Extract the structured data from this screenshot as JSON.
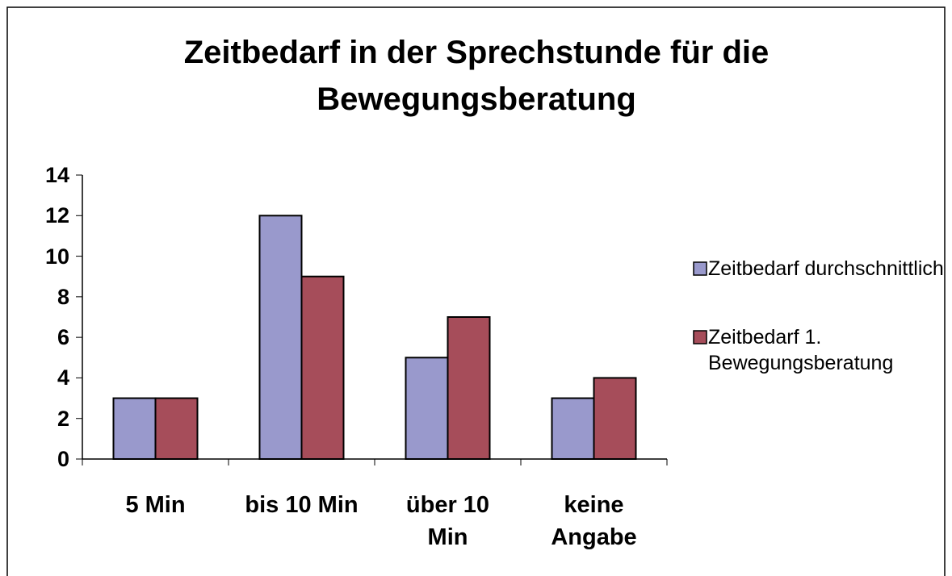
{
  "chart_data": {
    "type": "bar",
    "title": "Zeitbedarf in der Sprechstunde für die Bewegungsberatung",
    "categories": [
      "5 Min",
      "bis 10 Min",
      "über 10 Min",
      "keine Angabe"
    ],
    "series": [
      {
        "name": "Zeitbedarf durchschnittlich",
        "color": "#9999cc",
        "values": [
          3,
          12,
          5,
          3
        ]
      },
      {
        "name": "Zeitbedarf 1. Bewegungsberatung",
        "color": "#a64d5a",
        "values": [
          3,
          9,
          7,
          4
        ]
      }
    ],
    "ylim": [
      0,
      14
    ],
    "yticks": [
      0,
      2,
      4,
      6,
      8,
      10,
      12,
      14
    ],
    "grid": false,
    "legend": "right"
  }
}
